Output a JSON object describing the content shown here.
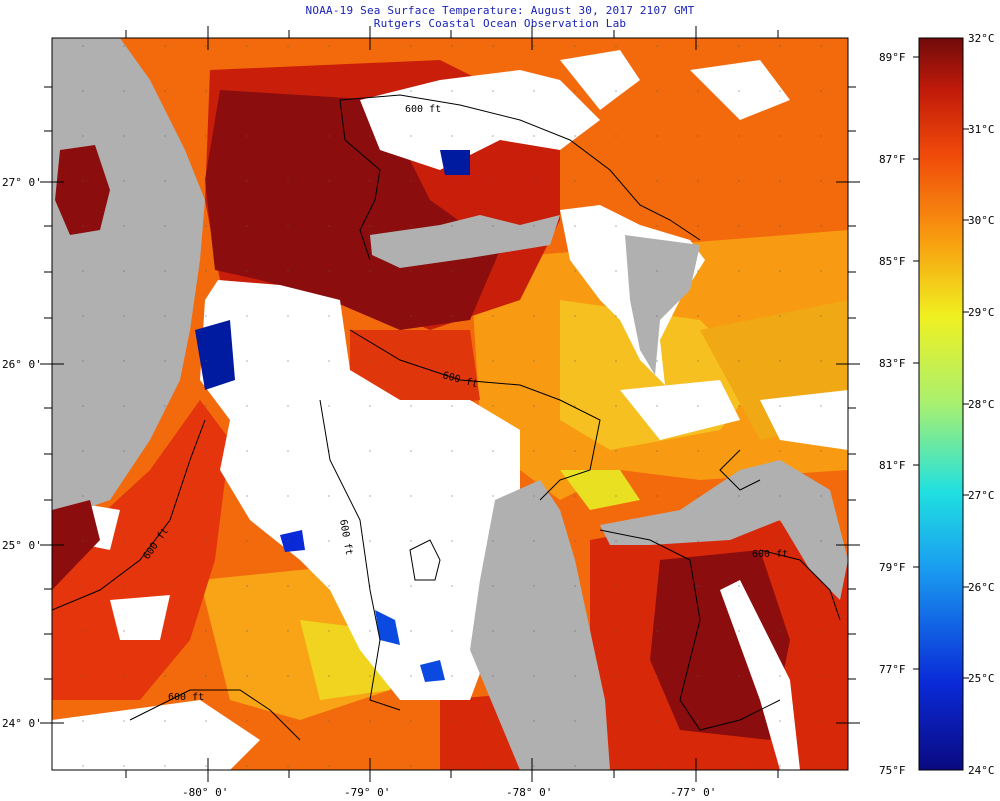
{
  "header": {
    "title": "NOAA-19 Sea Surface Temperature:  August 30, 2017 2107 GMT",
    "subtitle": "Rutgers Coastal Ocean Observation Lab"
  },
  "map": {
    "lat_labels": [
      "27° 0'",
      "26° 0'",
      "25° 0'",
      "24° 0'"
    ],
    "lon_labels": [
      "-80° 0'",
      "-79° 0'",
      "-78° 0'",
      "-77° 0'"
    ],
    "contour_labels": [
      "600 ft",
      "600 ft",
      "600 ft",
      "600 ft",
      "600 ft",
      "600 ft"
    ],
    "colors": {
      "land": "#b0b0b0",
      "cloud": "#ffffff",
      "warmest": "#8b0d0d",
      "hot": "#c81e0a",
      "red": "#e8380c",
      "orange": "#f36a0c",
      "amber": "#f89a12",
      "yellow": "#e8e020",
      "cold": "#001aa0"
    }
  },
  "colorbar": {
    "fahrenheit_labels": [
      "89°F",
      "87°F",
      "85°F",
      "83°F",
      "81°F",
      "79°F",
      "77°F",
      "75°F"
    ],
    "celsius_labels": [
      "32°C",
      "31°C",
      "30°C",
      "29°C",
      "28°C",
      "27°C",
      "26°C",
      "25°C",
      "24°C"
    ],
    "range_c": [
      24,
      32
    ],
    "range_f": [
      75,
      89
    ]
  }
}
